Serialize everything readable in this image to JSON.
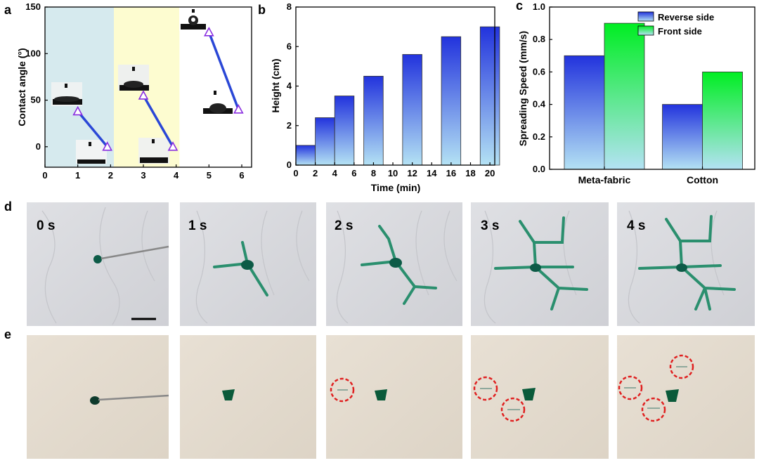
{
  "panel_labels": {
    "a": "a",
    "b": "b",
    "c": "c",
    "d": "d",
    "e": "e"
  },
  "chart_data": [
    {
      "id": "a",
      "type": "line",
      "title": "",
      "xlabel": "",
      "ylabel": "Contact angle (°)",
      "xlim": [
        0,
        6.3
      ],
      "ylim": [
        -22,
        150
      ],
      "xticks": [
        "0",
        "1",
        "2",
        "3",
        "4",
        "5",
        "6"
      ],
      "yticks": [
        "0",
        "50",
        "100",
        "150"
      ],
      "shaded_regions": [
        {
          "x": [
            0,
            2.1
          ],
          "color": "#d6eaee"
        },
        {
          "x": [
            2.1,
            4.1
          ],
          "color": "#fdfcd0"
        }
      ],
      "series": [
        {
          "values": [
            {
              "x": 1.0,
              "y": 38
            },
            {
              "x": 1.9,
              "y": 0
            }
          ]
        },
        {
          "values": [
            {
              "x": 3.0,
              "y": 55
            },
            {
              "x": 3.9,
              "y": 0
            }
          ]
        },
        {
          "values": [
            {
              "x": 5.0,
              "y": 123
            },
            {
              "x": 5.9,
              "y": 40
            }
          ]
        }
      ],
      "line_color": "#2a47d6",
      "marker_color": "#8a2ee0"
    },
    {
      "id": "b",
      "type": "bar",
      "title": "",
      "xlabel": "Time (min)",
      "ylabel": "Height (cm)",
      "xlim": [
        0,
        20.5
      ],
      "ylim": [
        0,
        8
      ],
      "xticks": [
        "0",
        "2",
        "4",
        "6",
        "8",
        "10",
        "12",
        "14",
        "16",
        "18",
        "20"
      ],
      "yticks": [
        "0",
        "2",
        "4",
        "6",
        "8"
      ],
      "bars": [
        {
          "x": 1,
          "y": 1.0
        },
        {
          "x": 3,
          "y": 2.4
        },
        {
          "x": 5,
          "y": 3.5
        },
        {
          "x": 8,
          "y": 4.5
        },
        {
          "x": 12,
          "y": 5.6
        },
        {
          "x": 16,
          "y": 6.5
        },
        {
          "x": 20,
          "y": 7.0
        }
      ],
      "bar_width": 2
    },
    {
      "id": "c",
      "type": "bar",
      "title": "",
      "xlabel": "",
      "ylabel": "Spreading Speed (mm/s)",
      "ylim": [
        0,
        1.0
      ],
      "yticks": [
        "0.0",
        "0.2",
        "0.4",
        "0.6",
        "0.8",
        "1.0"
      ],
      "categories": [
        "Meta-fabric",
        "Cotton"
      ],
      "series": [
        {
          "name": "Reverse side",
          "values": [
            0.7,
            0.4
          ],
          "color_top": "#2233dd",
          "color_bottom": "#aee0f2"
        },
        {
          "name": "Front side",
          "values": [
            0.9,
            0.6
          ],
          "color_top": "#00ee22",
          "color_bottom": "#b2e4f3"
        }
      ],
      "legend": "top-right"
    }
  ],
  "photo_rows": {
    "d": {
      "labels": [
        "0 s",
        "1 s",
        "2 s",
        "3 s",
        "4 s"
      ]
    },
    "e": {
      "labels": []
    }
  }
}
